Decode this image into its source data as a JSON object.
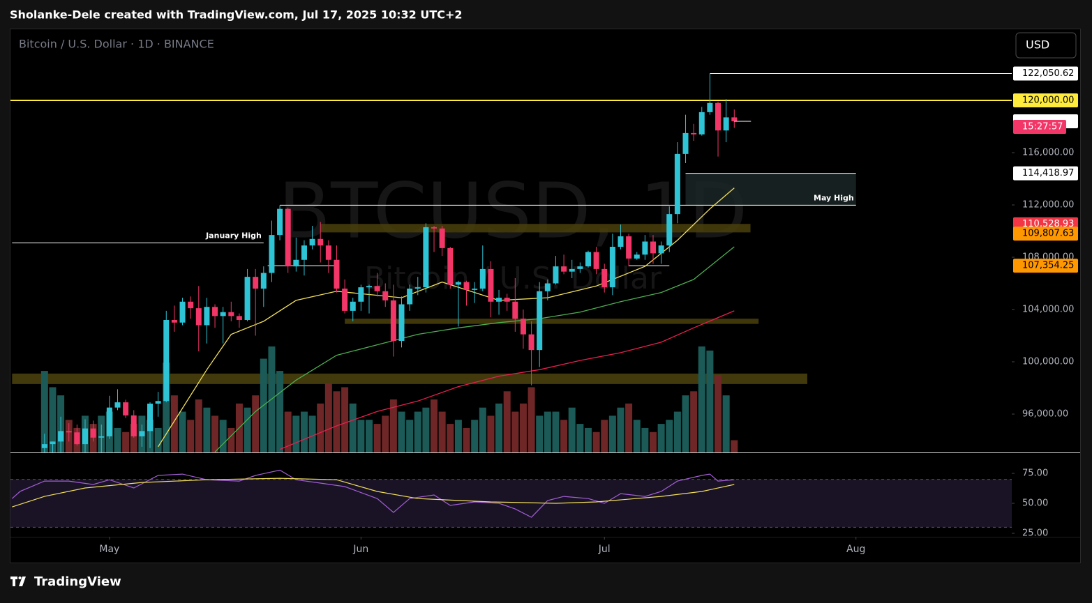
{
  "header": {
    "title": "Sholanke-Dele created with TradingView.com, Jul 17, 2025 10:32 UTC+2"
  },
  "footer": {
    "brand": "TradingView"
  },
  "currency_button": "USD",
  "chart_data": {
    "type": "candlestick",
    "legend": "Bitcoin / U.S. Dollar · 1D · BINANCE",
    "watermark": {
      "symbol": "BTCUSD, 1D",
      "description": "Bitcoin / U.S. Dollar"
    },
    "colors": {
      "up": "#2ec4d6",
      "down": "#f23668",
      "volume_up": "#1b5a57",
      "volume_down": "#6e2626"
    },
    "xlim": [
      -0.2,
      123.2
    ],
    "xticks": [
      {
        "value": 12,
        "label": "May"
      },
      {
        "value": 43,
        "label": "Jun"
      },
      {
        "value": 73,
        "label": "Jul"
      },
      {
        "value": 104,
        "label": "Aug"
      }
    ],
    "ylim": [
      93067,
      125440
    ],
    "yticks": [
      {
        "value": 96000,
        "label": "96,000.00"
      },
      {
        "value": 100000,
        "label": "100,000.00"
      },
      {
        "value": 104000,
        "label": "104,000.00"
      },
      {
        "value": 108000,
        "label": "108,000.00"
      },
      {
        "value": 112000,
        "label": "112,000.00"
      },
      {
        "value": 116000,
        "label": "116,000.00"
      }
    ],
    "grid": false,
    "x": [
      4,
      5,
      6,
      7,
      8,
      9,
      10,
      11,
      12,
      13,
      14,
      15,
      16,
      17,
      18,
      19,
      20,
      21,
      22,
      23,
      24,
      25,
      26,
      27,
      28,
      29,
      30,
      31,
      32,
      33,
      34,
      35,
      36,
      37,
      38,
      39,
      40,
      41,
      42,
      43,
      44,
      45,
      46,
      47,
      48,
      49,
      50,
      51,
      52,
      53,
      54,
      55,
      56,
      57,
      58,
      59,
      60,
      61,
      62,
      63,
      64,
      65,
      66,
      67,
      68,
      69,
      70,
      71,
      72,
      73,
      74,
      75,
      76,
      77,
      78,
      79,
      80,
      81,
      82,
      83,
      84,
      85,
      86,
      87,
      88,
      89
    ],
    "open": [
      93400,
      93700,
      93900,
      94700,
      94600,
      93700,
      94900,
      94200,
      94300,
      96500,
      96900,
      95900,
      94300,
      94700,
      96800,
      97000,
      103200,
      103000,
      104600,
      104100,
      102800,
      104200,
      103500,
      103800,
      103500,
      103200,
      106500,
      105600,
      106800,
      109700,
      111700,
      107300,
      107800,
      108900,
      109400,
      108900,
      107800,
      105600,
      103900,
      104600,
      105700,
      105800,
      105400,
      104700,
      101600,
      104400,
      105600,
      105700,
      110300,
      110200,
      108700,
      105900,
      106100,
      105500,
      105600,
      107100,
      104600,
      104900,
      104600,
      103300,
      102100,
      100900,
      105400,
      106000,
      107300,
      106900,
      107100,
      107300,
      108400,
      107100,
      105700,
      108800,
      109600,
      107900,
      108200,
      109200,
      108300,
      108900,
      111300,
      115900,
      117500,
      117400,
      119100,
      119800,
      117700,
      118700
    ],
    "high": [
      94500,
      93900,
      95800,
      95300,
      95200,
      95600,
      95500,
      95200,
      97400,
      97900,
      97100,
      96300,
      95200,
      96900,
      97700,
      103900,
      104300,
      104900,
      105000,
      105800,
      104900,
      104400,
      104200,
      104600,
      103700,
      107100,
      107100,
      107300,
      110800,
      111980,
      111800,
      109500,
      109300,
      110400,
      110700,
      109300,
      108900,
      106300,
      104900,
      105900,
      105900,
      106800,
      106000,
      105900,
      105000,
      105900,
      106500,
      110600,
      110400,
      110400,
      108800,
      106200,
      106200,
      106100,
      108900,
      107700,
      105500,
      105200,
      106400,
      104000,
      103100,
      106100,
      106300,
      108100,
      108200,
      107800,
      107600,
      108500,
      108800,
      107500,
      109800,
      110500,
      109800,
      108400,
      109700,
      109700,
      109200,
      111900,
      116800,
      118900,
      118200,
      119500,
      122050.62,
      119900,
      120100,
      119300
    ],
    "low": [
      91700,
      91700,
      92900,
      93900,
      93600,
      92800,
      93900,
      92900,
      94100,
      96300,
      95700,
      94200,
      93500,
      93400,
      95800,
      96900,
      102300,
      102800,
      103300,
      100800,
      101400,
      102600,
      101400,
      103100,
      102600,
      103100,
      102000,
      104200,
      106100,
      109300,
      106800,
      106900,
      106600,
      108600,
      107600,
      106800,
      105300,
      103700,
      103100,
      103900,
      103700,
      105000,
      104200,
      100400,
      101100,
      103900,
      105100,
      105300,
      108400,
      108100,
      105600,
      102700,
      104300,
      104500,
      105400,
      103400,
      103600,
      103900,
      102300,
      101000,
      98200,
      99600,
      104700,
      105900,
      106700,
      106400,
      106800,
      107200,
      106700,
      105300,
      105100,
      108600,
      107300,
      107800,
      107800,
      107500,
      107500,
      108400,
      110600,
      115200,
      116900,
      117300,
      118900,
      115700,
      116800,
      117900
    ],
    "close": [
      93700,
      93900,
      94700,
      94600,
      93700,
      94900,
      94200,
      94300,
      96500,
      96900,
      95900,
      94300,
      94700,
      96800,
      97000,
      103200,
      103000,
      104600,
      104100,
      102800,
      104200,
      103500,
      103800,
      103500,
      103200,
      106500,
      105600,
      106800,
      109700,
      111700,
      107300,
      107800,
      108900,
      109400,
      108900,
      107800,
      105600,
      103900,
      104600,
      105700,
      105800,
      105400,
      104700,
      101600,
      104400,
      105600,
      105700,
      110300,
      110200,
      108700,
      105900,
      106100,
      105500,
      105600,
      107100,
      104600,
      104900,
      104600,
      103300,
      102100,
      100900,
      105400,
      106000,
      107300,
      106900,
      107100,
      107300,
      108400,
      107100,
      105700,
      108800,
      109600,
      107900,
      108200,
      109200,
      108300,
      108900,
      111300,
      115900,
      117500,
      117400,
      119100,
      119800,
      117700,
      118700,
      118400
    ],
    "volume": [
      20,
      16,
      14,
      8,
      6,
      9,
      7,
      9,
      10,
      6,
      5,
      7,
      9,
      8,
      6,
      22,
      14,
      10,
      8,
      13,
      11,
      9,
      8,
      6,
      12,
      11,
      14,
      23,
      26,
      20,
      10,
      9,
      10,
      9,
      12,
      17,
      15,
      16,
      12,
      8,
      8,
      7,
      9,
      13,
      10,
      8,
      10,
      11,
      13,
      10,
      7,
      8,
      6,
      8,
      11,
      9,
      12,
      15,
      10,
      12,
      16,
      9,
      10,
      10,
      8,
      11,
      7,
      6,
      5,
      8,
      9,
      11,
      12,
      8,
      6,
      5,
      7,
      8,
      10,
      14,
      15,
      26,
      25,
      19,
      14,
      3
    ],
    "moving_averages": [
      {
        "color": "#f2e05a",
        "x": [
          18,
          24,
          27,
          31,
          35,
          40,
          48,
          53,
          60,
          66,
          72,
          78,
          82,
          86,
          89
        ],
        "values": [
          93500,
          99400,
          102100,
          103100,
          104700,
          105400,
          104900,
          106100,
          104700,
          104900,
          105800,
          107300,
          109300,
          111700,
          113300
        ]
      },
      {
        "color": "#4caf50",
        "x": [
          25,
          30,
          35,
          40,
          45,
          50,
          55,
          60,
          65,
          70,
          75,
          80,
          84,
          89
        ],
        "values": [
          93100,
          96200,
          98600,
          100500,
          101300,
          102100,
          102600,
          103000,
          103300,
          103800,
          104600,
          105300,
          106300,
          108800
        ]
      },
      {
        "color": "#e91e4f",
        "x": [
          33,
          40,
          45,
          50,
          55,
          60,
          65,
          70,
          75,
          80,
          84,
          89
        ],
        "values": [
          93300,
          95100,
          96200,
          97000,
          98100,
          98900,
          99400,
          100100,
          100700,
          101500,
          102600,
          103900
        ]
      }
    ],
    "levels": [
      {
        "value": 120000,
        "color": "#ffeb3b"
      },
      {
        "value": 109100,
        "label": "January High",
        "color": "#ffffff",
        "x": [
          0,
          31
        ]
      },
      {
        "value": 111980,
        "label": "May High",
        "color": "#ffffff",
        "x": [
          33,
          104
        ]
      },
      {
        "value": 114418.97,
        "color": "#ffffff",
        "x": [
          83,
          104
        ]
      },
      {
        "value": 122050.62,
        "color": "#ffffff",
        "x": [
          86,
          123.2
        ]
      },
      {
        "value": 107354.25,
        "color": "#ffffff",
        "x": [
          31.5,
          40
        ]
      },
      {
        "value": 107354.25,
        "color": "#ffffff",
        "x": [
          76,
          81
        ]
      }
    ],
    "zones": [
      {
        "low": 111980,
        "high": 114418.97,
        "x": [
          83,
          104
        ],
        "color": "#1b2626"
      },
      {
        "low": 109900,
        "high": 110550,
        "x": [
          38,
          91
        ],
        "color": "#4a3f0c"
      },
      {
        "low": 102900,
        "high": 103300,
        "x": [
          41,
          92
        ],
        "color": "#4a3f0c"
      },
      {
        "low": 98300,
        "high": 99100,
        "x": [
          0,
          98
        ],
        "color": "#4d440e"
      }
    ],
    "price_labels": [
      {
        "value": 122050.62,
        "label": "122,050.62",
        "color": "#ffffff"
      },
      {
        "value": 120000,
        "label": "120,000.00",
        "color": "#ffeb3b"
      },
      {
        "value": 114418.97,
        "label": "114,418.97",
        "color": "#ffffff"
      },
      {
        "value": 110528.93,
        "label": "110,528.93",
        "color": "#f23645"
      },
      {
        "value": 109807.63,
        "label": "109,807.63",
        "color": "#ff9800"
      },
      {
        "value": 107354.25,
        "label": "107,354.25",
        "color": "#ff9800"
      }
    ],
    "countdown": "15:27:57",
    "rsi": {
      "ylim": [
        22.1,
        91.9
      ],
      "yticks": [
        {
          "value": 25,
          "label": "25.00"
        },
        {
          "value": 50,
          "label": "50.00"
        },
        {
          "value": 75,
          "label": "75.00"
        }
      ],
      "band": [
        30,
        70
      ],
      "series": [
        {
          "color": "#a35fd6",
          "x": [
            0,
            1,
            4,
            7,
            10,
            12,
            15,
            18,
            21,
            24,
            28,
            30,
            33,
            35,
            38,
            41,
            45,
            47,
            49,
            52,
            54,
            57,
            60,
            62,
            64,
            66,
            68,
            71,
            73,
            75,
            78,
            80,
            82,
            85,
            86,
            87,
            89
          ],
          "values": [
            54,
            60,
            68.6,
            68.6,
            65.7,
            69.7,
            62.8,
            73.3,
            74.4,
            69.7,
            68.6,
            73.3,
            77.7,
            69.7,
            66.9,
            64,
            54,
            42.4,
            54,
            57,
            48.3,
            51.2,
            50,
            45.3,
            38.4,
            52.3,
            55.8,
            54,
            50,
            58.1,
            55.8,
            59.9,
            68.6,
            73.3,
            74.4,
            68.6,
            69.7
          ]
        },
        {
          "color": "#f2e05a",
          "x": [
            0,
            4,
            9,
            16,
            24,
            33,
            40,
            45,
            50,
            59,
            67,
            72,
            80,
            85,
            89
          ],
          "values": [
            47,
            55.8,
            62.8,
            67.4,
            69.7,
            70.9,
            69.7,
            59.9,
            54,
            51.2,
            50,
            51.2,
            55.8,
            59.9,
            65.7
          ]
        }
      ]
    }
  }
}
